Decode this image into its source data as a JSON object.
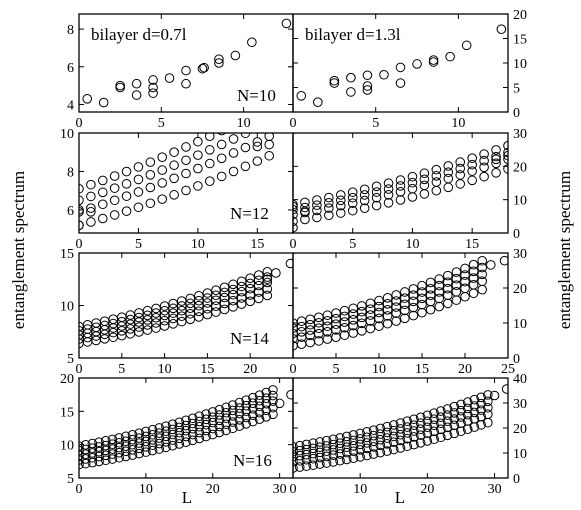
{
  "figure": {
    "ylabel_left": "entanglement spectrum",
    "ylabel_right": "entanglement spectrum",
    "xlabel": "L"
  },
  "chart_data": [
    {
      "type": "scatter",
      "row": 0,
      "col": 0,
      "label": "bilayer d=0.7l",
      "xlim": [
        0,
        13
      ],
      "ylim": [
        3.6,
        8.8
      ],
      "xticks": [
        0,
        5,
        10
      ],
      "yticks": [
        4,
        6,
        8
      ],
      "xtick_labels": [
        "0",
        "5",
        "10"
      ],
      "ytick_labels": [
        "4",
        "6",
        "8"
      ],
      "points": [
        [
          0.5,
          4.3
        ],
        [
          1.5,
          4.1
        ],
        [
          2.5,
          4.9
        ],
        [
          2.5,
          5.0
        ],
        [
          3.5,
          4.5
        ],
        [
          3.5,
          5.1
        ],
        [
          4.5,
          4.6
        ],
        [
          4.5,
          4.9
        ],
        [
          4.5,
          5.3
        ],
        [
          5.5,
          5.4
        ],
        [
          6.5,
          5.1
        ],
        [
          6.5,
          5.8
        ],
        [
          7.5,
          5.9
        ],
        [
          7.6,
          5.95
        ],
        [
          8.5,
          6.2
        ],
        [
          8.5,
          6.4
        ],
        [
          9.5,
          6.6
        ],
        [
          10.5,
          7.3
        ],
        [
          12.6,
          8.3
        ]
      ]
    },
    {
      "type": "scatter",
      "row": 0,
      "col": 1,
      "label": "bilayer d=1.3l",
      "panel_note": "N=10",
      "xlim": [
        0,
        13
      ],
      "ylim": [
        0,
        20
      ],
      "xticks": [
        0,
        5,
        10
      ],
      "yticks": [
        0,
        5,
        10,
        15,
        20
      ],
      "xtick_labels": [
        "0",
        "5",
        "10"
      ],
      "ytick_labels": [
        "0",
        "5",
        "10",
        "15",
        "20"
      ],
      "points": [
        [
          0.5,
          3.3
        ],
        [
          1.5,
          2.0
        ],
        [
          2.5,
          5.9
        ],
        [
          2.5,
          6.4
        ],
        [
          3.5,
          4.1
        ],
        [
          3.5,
          7.0
        ],
        [
          4.5,
          4.5
        ],
        [
          4.5,
          5.3
        ],
        [
          4.5,
          7.5
        ],
        [
          5.5,
          7.6
        ],
        [
          6.5,
          5.9
        ],
        [
          6.5,
          9.1
        ],
        [
          7.5,
          9.8
        ],
        [
          8.5,
          10.2
        ],
        [
          8.5,
          10.6
        ],
        [
          9.5,
          11.3
        ],
        [
          10.5,
          13.6
        ],
        [
          12.6,
          16.9
        ]
      ]
    },
    {
      "type": "scatter",
      "row": 1,
      "col": 0,
      "panel_note": "N=12",
      "xlim": [
        0,
        18
      ],
      "ylim": [
        4.8,
        10
      ],
      "xticks": [
        0,
        5,
        10,
        15
      ],
      "yticks": [
        6,
        8,
        10
      ],
      "xtick_labels": [
        "0",
        "5",
        "10",
        "15"
      ],
      "ytick_labels": [
        "6",
        "8",
        "10"
      ],
      "series_rule": {
        "x_range": [
          0,
          16
        ],
        "levels": [
          5.2,
          5.9,
          6.5,
          7.1
        ],
        "slopes": [
          0.17,
          0.19,
          0.2,
          0.21
        ],
        "curvature": 0.0035
      },
      "points": [
        [
          0,
          5.2
        ],
        [
          0,
          6.0
        ],
        [
          1,
          5.9
        ],
        [
          15,
          9.3
        ],
        [
          16,
          9.4
        ]
      ]
    },
    {
      "type": "scatter",
      "row": 1,
      "col": 1,
      "xlim": [
        0,
        18
      ],
      "ylim": [
        0,
        30
      ],
      "xticks": [
        0,
        5,
        10,
        15
      ],
      "yticks": [
        0,
        10,
        20,
        30
      ],
      "xtick_labels": [
        "0",
        "5",
        "10",
        "15"
      ],
      "ytick_labels": [
        "0",
        "10",
        "20",
        "30"
      ],
      "series_rule": {
        "x_range": [
          0,
          18
        ],
        "levels": [
          3.5,
          5.5,
          7.0,
          8.5
        ],
        "slopes": [
          0.55,
          0.6,
          0.63,
          0.66
        ],
        "curvature": 0.018
      },
      "points": [
        [
          0,
          1.6
        ],
        [
          0,
          7.9
        ],
        [
          1,
          6.5
        ],
        [
          17,
          22.1
        ],
        [
          18,
          23.2
        ]
      ]
    },
    {
      "type": "scatter",
      "row": 2,
      "col": 0,
      "panel_note": "N=14",
      "xlim": [
        0,
        25
      ],
      "ylim": [
        5,
        15
      ],
      "xticks": [
        0,
        5,
        10,
        15,
        20
      ],
      "yticks": [
        5,
        10,
        15
      ],
      "xtick_labels": [
        "0",
        "5",
        "10",
        "15",
        "20"
      ],
      "ytick_labels": [
        "5",
        "10",
        "15"
      ],
      "series_rule": {
        "x_range": [
          0,
          22
        ],
        "levels": [
          6.4,
          6.8,
          7.2,
          7.6,
          8.0
        ],
        "slopes": [
          0.13,
          0.14,
          0.15,
          0.155,
          0.16
        ],
        "curvature": 0.0035
      },
      "points": [
        [
          22,
          12.5
        ],
        [
          23,
          13.1
        ],
        [
          24.7,
          14.0
        ]
      ]
    },
    {
      "type": "scatter",
      "row": 2,
      "col": 1,
      "xlim": [
        0,
        25
      ],
      "ylim": [
        0,
        30
      ],
      "xticks": [
        0,
        5,
        10,
        15,
        20,
        25
      ],
      "yticks": [
        0,
        10,
        20,
        30
      ],
      "xtick_labels": [
        "0",
        "5",
        "10",
        "15",
        "20",
        "25"
      ],
      "ytick_labels": [
        "0",
        "10",
        "20",
        "30"
      ],
      "series_rule": {
        "x_range": [
          0,
          22
        ],
        "levels": [
          3.5,
          5.5,
          7.0,
          8.5,
          10.0
        ],
        "slopes": [
          0.42,
          0.44,
          0.46,
          0.48,
          0.5
        ],
        "curvature": 0.014
      },
      "points": [
        [
          23,
          26.6
        ],
        [
          24.6,
          27.8
        ]
      ]
    },
    {
      "type": "scatter",
      "row": 3,
      "col": 0,
      "panel_note": "N=16",
      "xlim": [
        0,
        32
      ],
      "ylim": [
        5,
        20
      ],
      "xticks": [
        0,
        10,
        20,
        30
      ],
      "yticks": [
        5,
        10,
        15,
        20
      ],
      "xtick_labels": [
        "0",
        "10",
        "20",
        "30"
      ],
      "ytick_labels": [
        "5",
        "10",
        "15",
        "20"
      ],
      "series_rule": {
        "x_range": [
          0,
          29
        ],
        "levels": [
          7.0,
          7.7,
          8.4,
          9.1,
          9.8
        ],
        "slopes": [
          0.15,
          0.16,
          0.17,
          0.175,
          0.18
        ],
        "curvature": 0.0038
      },
      "points": [
        [
          30,
          16.2
        ],
        [
          31.7,
          17.5
        ]
      ]
    },
    {
      "type": "scatter",
      "row": 3,
      "col": 1,
      "xlim": [
        0,
        32
      ],
      "ylim": [
        0,
        40
      ],
      "xticks": [
        0,
        10,
        20,
        30
      ],
      "yticks": [
        0,
        10,
        20,
        30,
        40
      ],
      "xtick_labels": [
        "0",
        "10",
        "20",
        "30"
      ],
      "ytick_labels": [
        "0",
        "10",
        "20",
        "30",
        "40"
      ],
      "series_rule": {
        "x_range": [
          0,
          29
        ],
        "levels": [
          4.0,
          6.5,
          8.5,
          10.5,
          12.5
        ],
        "slopes": [
          0.35,
          0.38,
          0.4,
          0.42,
          0.44
        ],
        "curvature": 0.0095
      },
      "points": [
        [
          30,
          33.0
        ],
        [
          31.8,
          35.6
        ]
      ]
    }
  ]
}
